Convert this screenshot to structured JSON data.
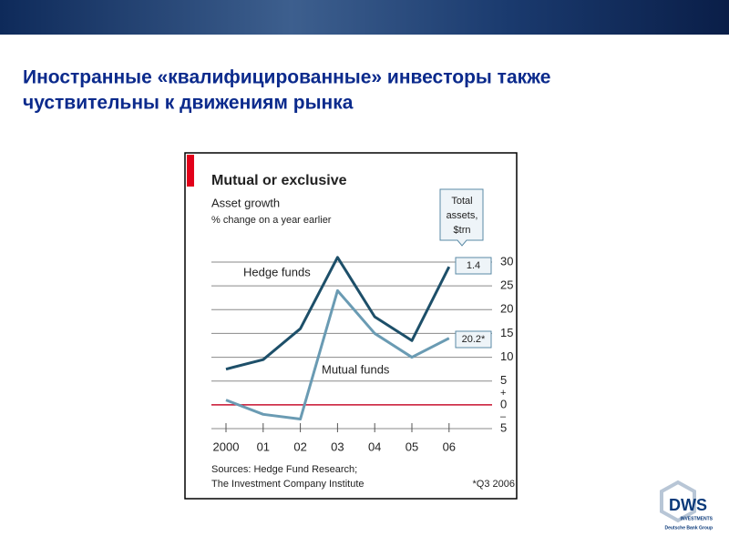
{
  "slide": {
    "title_lines": [
      "Иностранные «квалифицированные» инвесторы также",
      "чуствительны к движениям рынка"
    ]
  },
  "chart_data": {
    "type": "line",
    "title": "Mutual or exclusive",
    "subtitle": "Asset growth",
    "unit_note": "% change on a year earlier",
    "categories": [
      "2000",
      "01",
      "02",
      "03",
      "04",
      "05",
      "06"
    ],
    "series": [
      {
        "name": "Hedge funds",
        "color": "#1d4f69",
        "values": [
          7.5,
          9.5,
          16,
          31,
          18.5,
          13.5,
          29
        ],
        "end_label": "1.4"
      },
      {
        "name": "Mutual funds",
        "color": "#6a9bb3",
        "values": [
          1,
          -2,
          -3,
          24,
          15,
          10,
          14
        ],
        "end_label": "20.2*"
      }
    ],
    "end_label_title": [
      "Total",
      "assets,",
      "$trn"
    ],
    "ylim": [
      -5,
      30
    ],
    "yticks": [
      {
        "value": -5,
        "label": "5"
      },
      0,
      5,
      10,
      15,
      20,
      25,
      30
    ],
    "sign_labels": [
      "+",
      "–"
    ],
    "grid": true,
    "zero_line_color": "#c8102e",
    "sources": [
      "Sources: Hedge Fund Research;",
      "The Investment Company Institute"
    ],
    "footnote": "*Q3 2006"
  },
  "logo": {
    "name": "DWS",
    "line1": "INVESTMENTS",
    "line2": "Deutsche Bank Group"
  }
}
